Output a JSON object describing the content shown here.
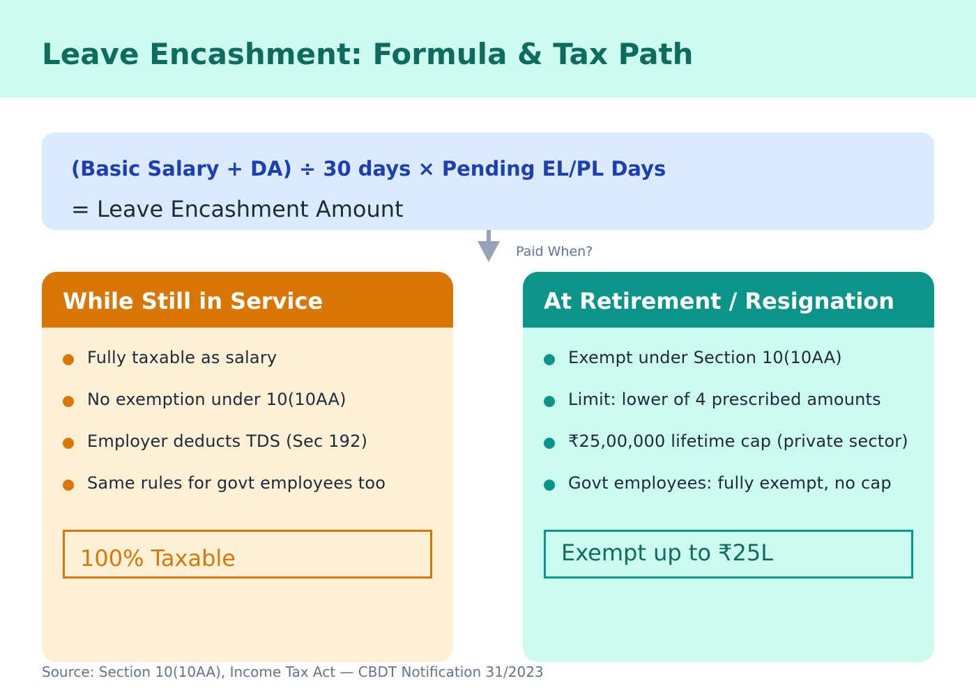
{
  "header": {
    "title": "Leave Encashment: Formula & Tax Path"
  },
  "formula": {
    "line1": "(Basic Salary + DA) ÷ 30 days  ×  Pending EL/PL Days",
    "line2": "= Leave Encashment Amount"
  },
  "connector": {
    "label": "Paid When?",
    "icon": "down-arrow-icon"
  },
  "in_service": {
    "title": "While Still in Service",
    "accent": "#d97706",
    "bullets": [
      "Fully taxable as salary",
      "No exemption under 10(10AA)",
      "Employer deducts TDS (Sec 192)",
      "Same rules for govt employees too"
    ],
    "callout": "100% Taxable"
  },
  "retirement": {
    "title": "At Retirement / Resignation",
    "accent": "#0d9488",
    "bullets": [
      "Exempt under Section 10(10AA)",
      "Limit: lower of 4 prescribed amounts",
      "₹25,00,000 lifetime cap (private sector)",
      "Govt employees: fully exempt, no cap"
    ],
    "callout": "Exempt up to ₹25L"
  },
  "footer": {
    "source": "Source: Section 10(10AA), Income Tax Act — CBDT Notification 31/2023"
  }
}
